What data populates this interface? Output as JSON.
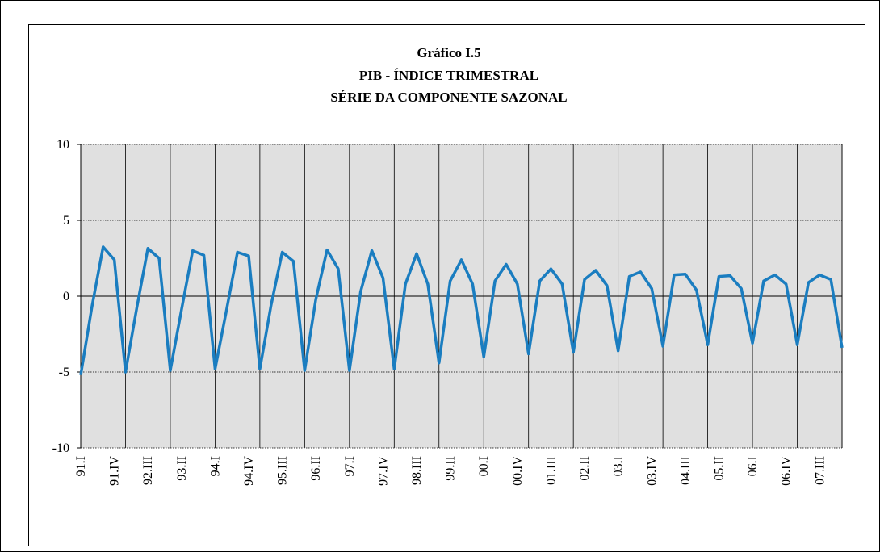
{
  "chart_data": {
    "type": "line",
    "title": "Gráfico I.5",
    "subtitle": [
      "PIB - ÍNDICE TRIMESTRAL",
      "SÉRIE DA COMPONENTE SAZONAL"
    ],
    "categories": [
      "91.I",
      null,
      null,
      "91.IV",
      null,
      null,
      "92.III",
      null,
      null,
      "93.II",
      null,
      null,
      "94.I",
      null,
      null,
      "94.IV",
      null,
      null,
      "95.III",
      null,
      null,
      "96.II",
      null,
      null,
      "97.I",
      null,
      null,
      "97.IV",
      null,
      null,
      "98.III",
      null,
      null,
      "99.II",
      null,
      null,
      "00.I",
      null,
      null,
      "00.IV",
      null,
      null,
      "01.III",
      null,
      null,
      "02.II",
      null,
      null,
      "03.I",
      null,
      null,
      "03.IV",
      null,
      null,
      "04.III",
      null,
      null,
      "05.II",
      null,
      null,
      "06.I",
      null,
      null,
      "06.IV",
      null,
      null,
      "07.III",
      null,
      null
    ],
    "series": [
      {
        "color": "#1a7dc0",
        "values": [
          -5.2,
          -0.7,
          3.25,
          2.4,
          -5.0,
          -0.8,
          3.15,
          2.5,
          -4.9,
          -0.9,
          3.0,
          2.7,
          -4.8,
          -1.0,
          2.9,
          2.65,
          -4.8,
          -0.6,
          2.9,
          2.3,
          -4.9,
          -0.2,
          3.05,
          1.8,
          -4.9,
          0.3,
          3.0,
          1.2,
          -4.8,
          0.8,
          2.8,
          0.8,
          -4.4,
          1.0,
          2.4,
          0.8,
          -4.0,
          1.0,
          2.1,
          0.8,
          -3.8,
          1.0,
          1.8,
          0.8,
          -3.7,
          1.1,
          1.7,
          0.7,
          -3.6,
          1.3,
          1.6,
          0.5,
          -3.3,
          1.4,
          1.45,
          0.4,
          -3.2,
          1.3,
          1.35,
          0.5,
          -3.1,
          1.0,
          1.4,
          0.8,
          -3.2,
          0.9,
          1.4,
          1.1,
          -3.4
        ]
      }
    ],
    "ylim": [
      -10,
      10
    ],
    "yticks": [
      -10,
      -5,
      0,
      5,
      10
    ],
    "grid": true
  }
}
